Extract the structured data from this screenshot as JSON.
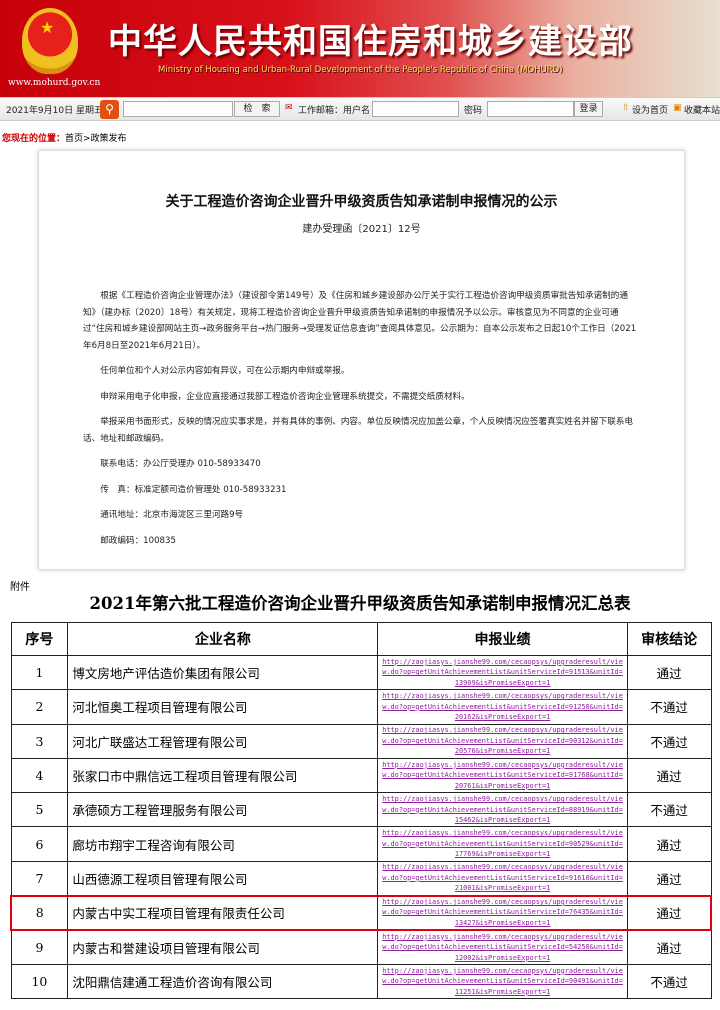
{
  "header": {
    "site_title": "中华人民共和国住房和城乡建设部",
    "site_en": "Ministry of Housing and Urban-Rural Development of the People's Republic of China (MOHURD)",
    "site_url": "www.mohurd.gov.cn"
  },
  "toolbar": {
    "date": "2021年9月10日 星期五",
    "search_button": "检　索",
    "mail_label": "工作邮箱：用户名",
    "password_label": "密码",
    "login_button": "登录",
    "set_home": "设为首页",
    "bookmark": "收藏本站"
  },
  "breadcrumb": {
    "label": "您现在的位置：",
    "path": "首页>政策发布"
  },
  "document": {
    "title": "关于工程造价咨询企业晋升甲级资质告知承诺制申报情况的公示",
    "number": "建办受理函〔2021〕12号",
    "paragraphs": [
      "根据《工程造价咨询企业管理办法》（建设部令第149号）及《住房和城乡建设部办公厅关于实行工程造价咨询甲级资质审批告知承诺制的通知》（建办标〔2020〕18号）有关规定，现将工程造价咨询企业晋升甲级资质告知承诺制的申报情况予以公示。审核意见为不同意的企业可通过“住房和城乡建设部网站主页→政务服务平台→热门服务→受理发证信息查询”查阅具体意见。公示期为：自本公示发布之日起10个工作日（2021年6月8日至2021年6月21日）。",
      "任何单位和个人对公示内容如有异议，可在公示期内申辩或举报。",
      "申辩采用电子化申报，企业应直接通过我部工程造价咨询企业管理系统提交，不需提交纸质材料。",
      "举报采用书面形式，反映的情况应实事求是，并有具体的事例、内容。单位反映情况应加盖公章，个人反映情况应签署真实姓名并留下联系电话、地址和邮政编码。",
      "联系电话：办公厅受理办 010-58933470",
      "传　真：标准定额司造价管理处 010-58933231",
      "通讯地址：北京市海淀区三里河路9号",
      "邮政编码：100835"
    ]
  },
  "attachment_label": "附件",
  "table": {
    "title": "2021年第六批工程造价咨询企业晋升甲级资质告知承诺制申报情况汇总表",
    "headers": [
      "序号",
      "企业名称",
      "申报业绩",
      "审核结论"
    ],
    "rows": [
      {
        "no": "1",
        "name": "博文房地产评估造价集团有限公司",
        "link": "http://zaojiasys.jianshe99.com/cecaopsys/upgraderesult/view.do?op=getUnitAchievementList&unitServiceId=91513&unitId=13909&isPromiseExport=1",
        "result": "通过"
      },
      {
        "no": "2",
        "name": "河北恒奥工程项目管理有限公司",
        "link": "http://zaojiasys.jianshe99.com/cecaopsys/upgraderesult/view.do?op=getUnitAchievementList&unitServiceId=91250&unitId=20162&isPromiseExport=1",
        "result": "不通过"
      },
      {
        "no": "3",
        "name": "河北广联盛达工程管理有限公司",
        "link": "http://zaojiasys.jianshe99.com/cecaopsys/upgraderesult/view.do?op=getUnitAchievementList&unitServiceId=90312&unitId=20576&isPromiseExport=1",
        "result": "不通过"
      },
      {
        "no": "4",
        "name": "张家口市中鼎信远工程项目管理有限公司",
        "link": "http://zaojiasys.jianshe99.com/cecaopsys/upgraderesult/view.do?op=getUnitAchievementList&unitServiceId=91768&unitId=20761&isPromiseExport=1",
        "result": "通过"
      },
      {
        "no": "5",
        "name": "承德硕方工程管理服务有限公司",
        "link": "http://zaojiasys.jianshe99.com/cecaopsys/upgraderesult/view.do?op=getUnitAchievementList&unitServiceId=88919&unitId=15462&isPromiseExport=1",
        "result": "不通过"
      },
      {
        "no": "6",
        "name": "廊坊市翔宇工程咨询有限公司",
        "link": "http://zaojiasys.jianshe99.com/cecaopsys/upgraderesult/view.do?op=getUnitAchievementList&unitServiceId=90529&unitId=17769&isPromiseExport=1",
        "result": "通过"
      },
      {
        "no": "7",
        "name": "山西德源工程项目管理有限公司",
        "link": "http://zaojiasys.jianshe99.com/cecaopsys/upgraderesult/view.do?op=getUnitAchievementList&unitServiceId=91610&unitId=21001&isPromiseExport=1",
        "result": "通过"
      },
      {
        "no": "8",
        "name": "内蒙古中实工程项目管理有限责任公司",
        "link": "http://zaojiasys.jianshe99.com/cecaopsys/upgraderesult/view.do?op=getUnitAchievementList&unitServiceId=76435&unitId=13427&isPromiseExport=1",
        "result": "通过",
        "highlighted": true
      },
      {
        "no": "9",
        "name": "内蒙古和誉建设项目管理有限公司",
        "link": "http://zaojiasys.jianshe99.com/cecaopsys/upgraderesult/view.do?op=getUnitAchievementList&unitServiceId=54250&unitId=12002&isPromiseExport=1",
        "result": "通过"
      },
      {
        "no": "10",
        "name": "沈阳鼎信建通工程造价咨询有限公司",
        "link": "http://zaojiasys.jianshe99.com/cecaopsys/upgraderesult/view.do?op=getUnitAchievementList&unitServiceId=90491&unitId=11251&isPromiseExport=1",
        "result": "不通过"
      }
    ]
  },
  "colors": {
    "brand_red": "#c8000a",
    "link": "#9020a0",
    "highlight": "#e00010"
  }
}
